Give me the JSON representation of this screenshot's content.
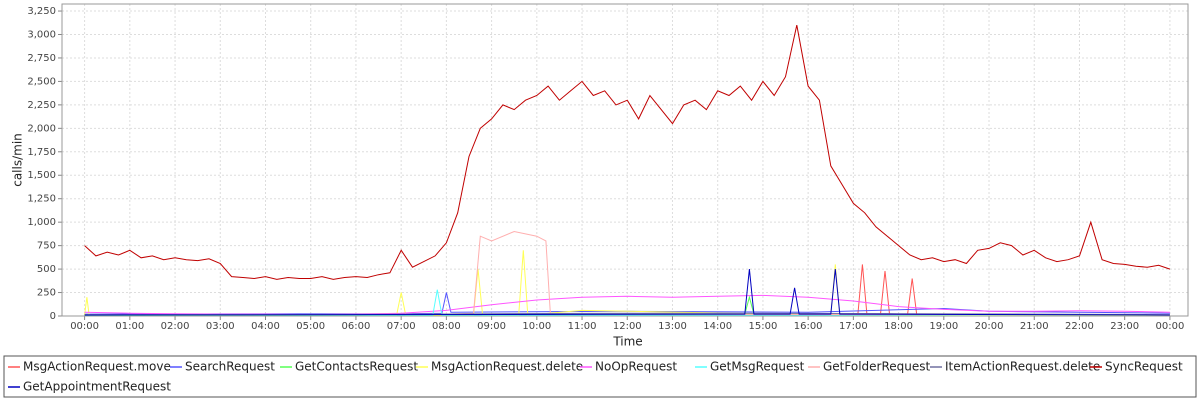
{
  "chart_data": {
    "type": "line",
    "y_label": "calls/min",
    "x_label": "Time",
    "xlim": [
      -0.5,
      24.4
    ],
    "ylim": [
      0,
      3325
    ],
    "xticks": [
      {
        "value": 0,
        "label": "00:00"
      },
      {
        "value": 1,
        "label": "01:00"
      },
      {
        "value": 2,
        "label": "02:00"
      },
      {
        "value": 3,
        "label": "03:00"
      },
      {
        "value": 4,
        "label": "04:00"
      },
      {
        "value": 5,
        "label": "05:00"
      },
      {
        "value": 6,
        "label": "06:00"
      },
      {
        "value": 7,
        "label": "07:00"
      },
      {
        "value": 8,
        "label": "08:00"
      },
      {
        "value": 9,
        "label": "09:00"
      },
      {
        "value": 10,
        "label": "10:00"
      },
      {
        "value": 11,
        "label": "11:00"
      },
      {
        "value": 12,
        "label": "12:00"
      },
      {
        "value": 13,
        "label": "13:00"
      },
      {
        "value": 14,
        "label": "14:00"
      },
      {
        "value": 15,
        "label": "15:00"
      },
      {
        "value": 16,
        "label": "16:00"
      },
      {
        "value": 17,
        "label": "17:00"
      },
      {
        "value": 18,
        "label": "18:00"
      },
      {
        "value": 19,
        "label": "19:00"
      },
      {
        "value": 20,
        "label": "20:00"
      },
      {
        "value": 21,
        "label": "21:00"
      },
      {
        "value": 22,
        "label": "22:00"
      },
      {
        "value": 23,
        "label": "23:00"
      },
      {
        "value": 24,
        "label": "00:00"
      }
    ],
    "yticks": [
      0,
      {
        "value": 250,
        "label": "250"
      },
      {
        "value": 500,
        "label": "500"
      },
      {
        "value": 750,
        "label": "750"
      },
      {
        "value": 1000,
        "label": "1,000"
      },
      {
        "value": 1250,
        "label": "1,250"
      },
      {
        "value": 1500,
        "label": "1,500"
      },
      {
        "value": 1750,
        "label": "1,750"
      },
      {
        "value": 2000,
        "label": "2,000"
      },
      {
        "value": 2250,
        "label": "2,250"
      },
      {
        "value": 2500,
        "label": "2,500"
      },
      {
        "value": 2750,
        "label": "2,750"
      },
      {
        "value": 3000,
        "label": "3,000"
      },
      {
        "value": 3250,
        "label": "3,250"
      }
    ],
    "grid": true,
    "series": [
      {
        "name": "MsgActionRequest.move",
        "color": "#ff5555",
        "x": [
          0,
          8,
          17.1,
          17.2,
          17.3,
          17.6,
          17.7,
          17.8,
          18.2,
          18.3,
          18.4,
          24
        ],
        "values": [
          10,
          15,
          20,
          550,
          20,
          20,
          480,
          20,
          20,
          400,
          15,
          10
        ]
      },
      {
        "name": "SearchRequest",
        "color": "#5555ff",
        "x": [
          0,
          7,
          7.9,
          8.0,
          8.1,
          12,
          16,
          19,
          20,
          24
        ],
        "values": [
          20,
          25,
          30,
          250,
          40,
          50,
          40,
          80,
          50,
          30
        ]
      },
      {
        "name": "GetContactsRequest",
        "color": "#55ff55",
        "x": [
          0,
          8,
          12,
          14.6,
          14.7,
          14.8,
          18,
          24
        ],
        "values": [
          5,
          10,
          20,
          20,
          200,
          20,
          10,
          5
        ]
      },
      {
        "name": "MsgActionRequest.delete",
        "color": "#ffff55",
        "x": [
          0,
          0.05,
          0.1,
          6.9,
          7.0,
          7.1,
          8.6,
          8.7,
          8.8,
          9.6,
          9.7,
          9.8,
          11,
          16.5,
          16.6,
          16.7,
          24
        ],
        "values": [
          10,
          200,
          10,
          10,
          250,
          10,
          10,
          500,
          10,
          10,
          700,
          10,
          60,
          10,
          550,
          10,
          5
        ]
      },
      {
        "name": "NoOpRequest",
        "color": "#ff55ff",
        "x": [
          0,
          1,
          2,
          3,
          4,
          5,
          6,
          7,
          8,
          9,
          10,
          11,
          12,
          13,
          14,
          15,
          16,
          17,
          18,
          19,
          20,
          21,
          22,
          23,
          24
        ],
        "values": [
          40,
          30,
          25,
          20,
          20,
          15,
          20,
          30,
          60,
          120,
          170,
          200,
          210,
          200,
          210,
          220,
          200,
          160,
          100,
          70,
          50,
          50,
          55,
          50,
          40
        ]
      },
      {
        "name": "GetMsgRequest",
        "color": "#55ffff",
        "x": [
          0,
          7.7,
          7.8,
          7.9,
          24
        ],
        "values": [
          10,
          10,
          280,
          10,
          10
        ]
      },
      {
        "name": "GetFolderRequest",
        "color": "#ffafaf",
        "x": [
          0,
          8,
          8.6,
          8.75,
          9,
          9.5,
          10,
          10.2,
          10.3,
          12,
          24
        ],
        "values": [
          10,
          20,
          30,
          850,
          800,
          900,
          850,
          800,
          20,
          20,
          10
        ]
      },
      {
        "name": "ItemActionRequest.delete",
        "color": "#7070a0",
        "x": [
          0,
          6,
          9,
          12,
          15,
          18,
          21,
          24
        ],
        "values": [
          15,
          15,
          25,
          30,
          30,
          25,
          20,
          15
        ]
      },
      {
        "name": "SyncRequest",
        "color": "#c00000",
        "x": [
          0,
          0.25,
          0.5,
          0.75,
          1,
          1.25,
          1.5,
          1.75,
          2,
          2.25,
          2.5,
          2.75,
          3,
          3.25,
          3.5,
          3.75,
          4,
          4.25,
          4.5,
          4.75,
          5,
          5.25,
          5.5,
          5.75,
          6,
          6.25,
          6.5,
          6.75,
          7,
          7.25,
          7.5,
          7.75,
          8,
          8.25,
          8.5,
          8.75,
          9,
          9.25,
          9.5,
          9.75,
          10,
          10.25,
          10.5,
          10.75,
          11,
          11.25,
          11.5,
          11.75,
          12,
          12.25,
          12.5,
          12.75,
          13,
          13.25,
          13.5,
          13.75,
          14,
          14.25,
          14.5,
          14.75,
          15,
          15.25,
          15.5,
          15.75,
          16,
          16.25,
          16.5,
          16.75,
          17,
          17.25,
          17.5,
          17.75,
          18,
          18.25,
          18.5,
          18.75,
          19,
          19.25,
          19.5,
          19.75,
          20,
          20.25,
          20.5,
          20.75,
          21,
          21.25,
          21.5,
          21.75,
          22,
          22.25,
          22.5,
          22.75,
          23,
          23.25,
          23.5,
          23.75,
          24
        ],
        "values": [
          750,
          640,
          680,
          650,
          700,
          620,
          640,
          600,
          620,
          600,
          590,
          610,
          560,
          420,
          410,
          400,
          420,
          390,
          410,
          400,
          400,
          420,
          390,
          410,
          420,
          410,
          440,
          460,
          700,
          520,
          580,
          640,
          780,
          1100,
          1700,
          2000,
          2100,
          2250,
          2200,
          2300,
          2350,
          2450,
          2300,
          2400,
          2500,
          2350,
          2400,
          2250,
          2300,
          2100,
          2350,
          2200,
          2050,
          2250,
          2300,
          2200,
          2400,
          2350,
          2450,
          2300,
          2500,
          2350,
          2550,
          3100,
          2450,
          2300,
          1600,
          1400,
          1200,
          1100,
          950,
          850,
          750,
          650,
          600,
          620,
          580,
          600,
          560,
          700,
          720,
          780,
          750,
          650,
          700,
          620,
          580,
          600,
          640,
          1000,
          600,
          560,
          550,
          530,
          520,
          540,
          500
        ]
      },
      {
        "name": "GetAppointmentRequest",
        "color": "#0000c0",
        "x": [
          0,
          14.6,
          14.7,
          14.8,
          15.6,
          15.7,
          15.8,
          16.5,
          16.6,
          16.7,
          24
        ],
        "values": [
          10,
          20,
          500,
          20,
          20,
          300,
          20,
          20,
          500,
          20,
          10
        ]
      }
    ]
  }
}
